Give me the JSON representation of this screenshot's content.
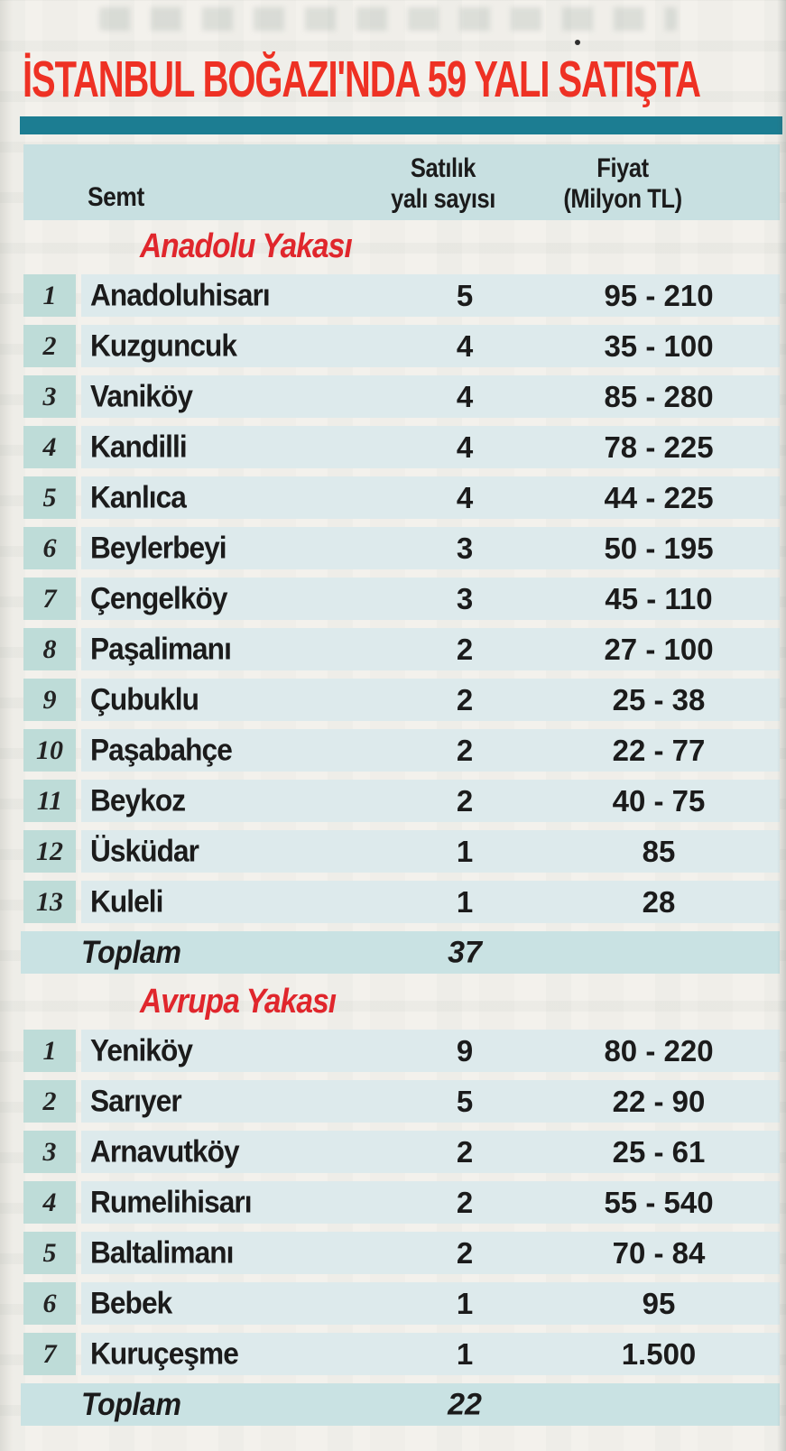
{
  "page": {
    "title": "İSTANBUL BOĞAZI'NDA 59 YALI SATIŞTA"
  },
  "table": {
    "headers": {
      "district": "Semt",
      "count": [
        "Satılık",
        "yalı sayısı"
      ],
      "price": [
        "Fiyat",
        "(Milyon TL)"
      ]
    },
    "sections": [
      {
        "name": "Anadolu Yakası",
        "rows": [
          {
            "no": "1",
            "district": "Anadoluhisarı",
            "count": "5",
            "price": "95 - 210"
          },
          {
            "no": "2",
            "district": "Kuzguncuk",
            "count": "4",
            "price": "35 - 100"
          },
          {
            "no": "3",
            "district": "Vaniköy",
            "count": "4",
            "price": "85 - 280"
          },
          {
            "no": "4",
            "district": "Kandilli",
            "count": "4",
            "price": "78 - 225"
          },
          {
            "no": "5",
            "district": "Kanlıca",
            "count": "4",
            "price": "44 - 225"
          },
          {
            "no": "6",
            "district": "Beylerbeyi",
            "count": "3",
            "price": "50 - 195"
          },
          {
            "no": "7",
            "district": "Çengelköy",
            "count": "3",
            "price": "45 - 110"
          },
          {
            "no": "8",
            "district": "Paşalimanı",
            "count": "2",
            "price": "27 - 100"
          },
          {
            "no": "9",
            "district": "Çubuklu",
            "count": "2",
            "price": "25 - 38"
          },
          {
            "no": "10",
            "district": "Paşabahçe",
            "count": "2",
            "price": "22 - 77"
          },
          {
            "no": "11",
            "district": "Beykoz",
            "count": "2",
            "price": "40 - 75"
          },
          {
            "no": "12",
            "district": "Üsküdar",
            "count": "1",
            "price": "85"
          },
          {
            "no": "13",
            "district": "Kuleli",
            "count": "1",
            "price": "28"
          }
        ],
        "total": {
          "label": "Toplam",
          "count": "37"
        }
      },
      {
        "name": "Avrupa Yakası",
        "rows": [
          {
            "no": "1",
            "district": "Yeniköy",
            "count": "9",
            "price": "80 - 220"
          },
          {
            "no": "2",
            "district": "Sarıyer",
            "count": "5",
            "price": "22 - 90"
          },
          {
            "no": "3",
            "district": "Arnavutköy",
            "count": "2",
            "price": "25 - 61"
          },
          {
            "no": "4",
            "district": "Rumelihisarı",
            "count": "2",
            "price": "55 - 540"
          },
          {
            "no": "5",
            "district": "Baltalimanı",
            "count": "2",
            "price": "70 - 84"
          },
          {
            "no": "6",
            "district": "Bebek",
            "count": "1",
            "price": "95"
          },
          {
            "no": "7",
            "district": "Kuruçeşme",
            "count": "1",
            "price": "1.500"
          }
        ],
        "total": {
          "label": "Toplam",
          "count": "22"
        }
      }
    ]
  },
  "colors": {
    "title_red": "#ee3124",
    "section_red": "#e0262c",
    "teal_bar": "#1c7d92",
    "header_band": "#c8e0e1",
    "row_band": "#ddeaec",
    "number_box": "#bedcd8",
    "total_band": "#c9e2e3",
    "text": "#1b1b1b",
    "background": "#f3f1ec"
  }
}
